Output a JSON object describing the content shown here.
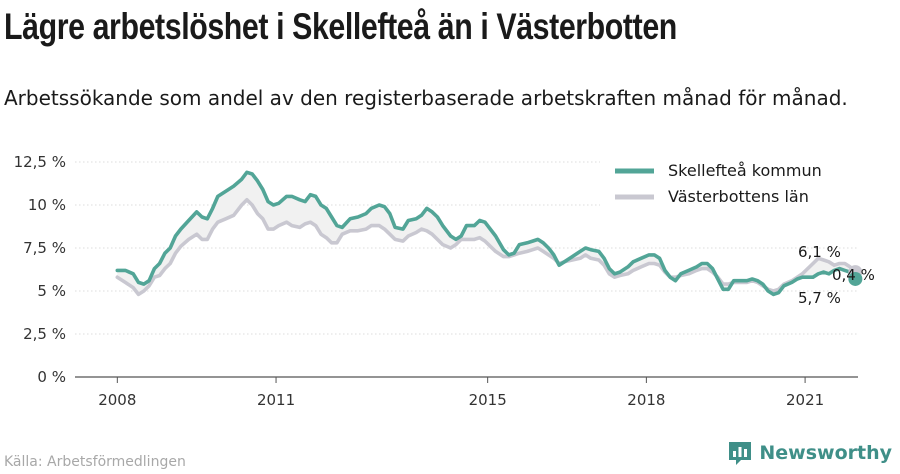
{
  "header": {
    "title": "Lägre arbetslöshet i Skellefteå än i Västerbotten",
    "subtitle": "Arbetssökande som andel av den registerbaserade arbetskraften månad för månad."
  },
  "footer": {
    "source": "Källa: Arbetsförmedlingen",
    "brand": "Newsworthy",
    "brand_icon": "bar-chart-logo-icon"
  },
  "colors": {
    "skelleftea": "#52a597",
    "vasterbotten": "#c9c8d1",
    "gap_fill": "#f1f1f1",
    "grid": "#dcdcdc"
  },
  "chart_data": {
    "type": "line",
    "title": "Lägre arbetslöshet i Skellefteå än i Västerbotten",
    "subtitle": "Arbetssökande som andel av den registerbaserade arbetskraften månad för månad.",
    "xlabel": "",
    "ylabel": "",
    "x_ticks": [
      {
        "label": "2008",
        "x": 2008.0
      },
      {
        "label": "2011",
        "x": 2011.0
      },
      {
        "label": "2015",
        "x": 2015.0
      },
      {
        "label": "2018",
        "x": 2018.0
      },
      {
        "label": "2021",
        "x": 2021.0
      }
    ],
    "y_ticks": [
      {
        "label": "0 %",
        "y": 0
      },
      {
        "label": "2,5 %",
        "y": 2.5
      },
      {
        "label": "5 %",
        "y": 5
      },
      {
        "label": "7,5 %",
        "y": 7.5
      },
      {
        "label": "10 %",
        "y": 10
      },
      {
        "label": "12,5 %",
        "y": 12.5
      }
    ],
    "xlim": [
      2007.2,
      2022.0
    ],
    "ylim": [
      0,
      12.5
    ],
    "grid": true,
    "legend": "top-right",
    "series": [
      {
        "name": "Skellefteå kommun",
        "color": "#52a597",
        "points": [
          [
            2008.0,
            6.2
          ],
          [
            2008.15,
            6.2
          ],
          [
            2008.3,
            6.0
          ],
          [
            2008.4,
            5.5
          ],
          [
            2008.5,
            5.4
          ],
          [
            2008.6,
            5.6
          ],
          [
            2008.7,
            6.3
          ],
          [
            2008.8,
            6.6
          ],
          [
            2008.9,
            7.2
          ],
          [
            2009.0,
            7.5
          ],
          [
            2009.1,
            8.2
          ],
          [
            2009.2,
            8.6
          ],
          [
            2009.35,
            9.1
          ],
          [
            2009.5,
            9.6
          ],
          [
            2009.6,
            9.3
          ],
          [
            2009.7,
            9.2
          ],
          [
            2009.8,
            9.8
          ],
          [
            2009.9,
            10.5
          ],
          [
            2010.05,
            10.8
          ],
          [
            2010.2,
            11.1
          ],
          [
            2010.35,
            11.5
          ],
          [
            2010.45,
            11.9
          ],
          [
            2010.55,
            11.8
          ],
          [
            2010.65,
            11.4
          ],
          [
            2010.75,
            10.9
          ],
          [
            2010.85,
            10.2
          ],
          [
            2010.95,
            10.0
          ],
          [
            2011.05,
            10.1
          ],
          [
            2011.2,
            10.5
          ],
          [
            2011.3,
            10.5
          ],
          [
            2011.45,
            10.3
          ],
          [
            2011.55,
            10.2
          ],
          [
            2011.65,
            10.6
          ],
          [
            2011.75,
            10.5
          ],
          [
            2011.85,
            10.0
          ],
          [
            2011.95,
            9.8
          ],
          [
            2012.05,
            9.3
          ],
          [
            2012.15,
            8.8
          ],
          [
            2012.25,
            8.7
          ],
          [
            2012.4,
            9.2
          ],
          [
            2012.55,
            9.3
          ],
          [
            2012.7,
            9.5
          ],
          [
            2012.8,
            9.8
          ],
          [
            2012.95,
            10.0
          ],
          [
            2013.05,
            9.9
          ],
          [
            2013.15,
            9.5
          ],
          [
            2013.25,
            8.7
          ],
          [
            2013.4,
            8.6
          ],
          [
            2013.5,
            9.1
          ],
          [
            2013.65,
            9.2
          ],
          [
            2013.75,
            9.4
          ],
          [
            2013.85,
            9.8
          ],
          [
            2013.95,
            9.6
          ],
          [
            2014.05,
            9.3
          ],
          [
            2014.15,
            8.8
          ],
          [
            2014.3,
            8.2
          ],
          [
            2014.4,
            8.0
          ],
          [
            2014.5,
            8.2
          ],
          [
            2014.6,
            8.8
          ],
          [
            2014.75,
            8.8
          ],
          [
            2014.85,
            9.1
          ],
          [
            2014.95,
            9.0
          ],
          [
            2015.05,
            8.6
          ],
          [
            2015.15,
            8.2
          ],
          [
            2015.3,
            7.4
          ],
          [
            2015.4,
            7.1
          ],
          [
            2015.5,
            7.2
          ],
          [
            2015.6,
            7.7
          ],
          [
            2015.75,
            7.8
          ],
          [
            2015.85,
            7.9
          ],
          [
            2015.95,
            8.0
          ],
          [
            2016.05,
            7.8
          ],
          [
            2016.15,
            7.5
          ],
          [
            2016.25,
            7.1
          ],
          [
            2016.35,
            6.5
          ],
          [
            2016.45,
            6.7
          ],
          [
            2016.6,
            7.0
          ],
          [
            2016.75,
            7.3
          ],
          [
            2016.85,
            7.5
          ],
          [
            2016.95,
            7.4
          ],
          [
            2017.1,
            7.3
          ],
          [
            2017.2,
            6.9
          ],
          [
            2017.3,
            6.3
          ],
          [
            2017.4,
            6.0
          ],
          [
            2017.5,
            6.1
          ],
          [
            2017.65,
            6.4
          ],
          [
            2017.75,
            6.7
          ],
          [
            2017.9,
            6.9
          ],
          [
            2018.05,
            7.1
          ],
          [
            2018.15,
            7.1
          ],
          [
            2018.25,
            6.9
          ],
          [
            2018.35,
            6.2
          ],
          [
            2018.45,
            5.8
          ],
          [
            2018.55,
            5.6
          ],
          [
            2018.65,
            6.0
          ],
          [
            2018.8,
            6.2
          ],
          [
            2018.95,
            6.4
          ],
          [
            2019.05,
            6.6
          ],
          [
            2019.15,
            6.6
          ],
          [
            2019.25,
            6.3
          ],
          [
            2019.35,
            5.7
          ],
          [
            2019.45,
            5.1
          ],
          [
            2019.55,
            5.1
          ],
          [
            2019.65,
            5.6
          ],
          [
            2019.75,
            5.6
          ],
          [
            2019.9,
            5.6
          ],
          [
            2020.0,
            5.7
          ],
          [
            2020.1,
            5.6
          ],
          [
            2020.2,
            5.4
          ],
          [
            2020.3,
            5.0
          ],
          [
            2020.4,
            4.8
          ],
          [
            2020.5,
            4.9
          ],
          [
            2020.6,
            5.3
          ],
          [
            2020.75,
            5.5
          ],
          [
            2020.85,
            5.7
          ],
          [
            2020.95,
            5.8
          ],
          [
            2021.05,
            5.8
          ],
          [
            2021.15,
            5.8
          ],
          [
            2021.25,
            6.0
          ],
          [
            2021.35,
            6.1
          ],
          [
            2021.45,
            6.0
          ],
          [
            2021.55,
            6.2
          ],
          [
            2021.65,
            6.3
          ],
          [
            2021.75,
            6.2
          ],
          [
            2021.85,
            6.1
          ],
          [
            2021.95,
            5.7
          ]
        ]
      },
      {
        "name": "Västerbottens län",
        "color": "#c9c8d1",
        "points": [
          [
            2008.0,
            5.8
          ],
          [
            2008.15,
            5.5
          ],
          [
            2008.3,
            5.2
          ],
          [
            2008.4,
            4.8
          ],
          [
            2008.5,
            5.0
          ],
          [
            2008.6,
            5.3
          ],
          [
            2008.7,
            5.8
          ],
          [
            2008.8,
            5.9
          ],
          [
            2008.9,
            6.3
          ],
          [
            2009.0,
            6.6
          ],
          [
            2009.1,
            7.2
          ],
          [
            2009.2,
            7.6
          ],
          [
            2009.35,
            8.0
          ],
          [
            2009.5,
            8.3
          ],
          [
            2009.6,
            8.0
          ],
          [
            2009.7,
            8.0
          ],
          [
            2009.8,
            8.6
          ],
          [
            2009.9,
            9.0
          ],
          [
            2010.05,
            9.2
          ],
          [
            2010.2,
            9.4
          ],
          [
            2010.35,
            10.0
          ],
          [
            2010.45,
            10.3
          ],
          [
            2010.55,
            10.0
          ],
          [
            2010.65,
            9.5
          ],
          [
            2010.75,
            9.2
          ],
          [
            2010.85,
            8.6
          ],
          [
            2010.95,
            8.6
          ],
          [
            2011.05,
            8.8
          ],
          [
            2011.2,
            9.0
          ],
          [
            2011.3,
            8.8
          ],
          [
            2011.45,
            8.7
          ],
          [
            2011.55,
            8.9
          ],
          [
            2011.65,
            9.0
          ],
          [
            2011.75,
            8.8
          ],
          [
            2011.85,
            8.3
          ],
          [
            2011.95,
            8.1
          ],
          [
            2012.05,
            7.8
          ],
          [
            2012.15,
            7.8
          ],
          [
            2012.25,
            8.3
          ],
          [
            2012.4,
            8.5
          ],
          [
            2012.55,
            8.5
          ],
          [
            2012.7,
            8.6
          ],
          [
            2012.8,
            8.8
          ],
          [
            2012.95,
            8.8
          ],
          [
            2013.05,
            8.6
          ],
          [
            2013.15,
            8.3
          ],
          [
            2013.25,
            8.0
          ],
          [
            2013.4,
            7.9
          ],
          [
            2013.5,
            8.2
          ],
          [
            2013.65,
            8.4
          ],
          [
            2013.75,
            8.6
          ],
          [
            2013.85,
            8.5
          ],
          [
            2013.95,
            8.3
          ],
          [
            2014.05,
            8.0
          ],
          [
            2014.15,
            7.7
          ],
          [
            2014.3,
            7.5
          ],
          [
            2014.4,
            7.7
          ],
          [
            2014.5,
            8.0
          ],
          [
            2014.6,
            8.0
          ],
          [
            2014.75,
            8.0
          ],
          [
            2014.85,
            8.1
          ],
          [
            2014.95,
            7.9
          ],
          [
            2015.05,
            7.6
          ],
          [
            2015.15,
            7.3
          ],
          [
            2015.3,
            7.0
          ],
          [
            2015.4,
            7.0
          ],
          [
            2015.5,
            7.1
          ],
          [
            2015.6,
            7.2
          ],
          [
            2015.75,
            7.3
          ],
          [
            2015.85,
            7.4
          ],
          [
            2015.95,
            7.5
          ],
          [
            2016.05,
            7.3
          ],
          [
            2016.15,
            7.1
          ],
          [
            2016.25,
            6.9
          ],
          [
            2016.35,
            6.6
          ],
          [
            2016.45,
            6.7
          ],
          [
            2016.6,
            6.8
          ],
          [
            2016.75,
            6.9
          ],
          [
            2016.85,
            7.1
          ],
          [
            2016.95,
            6.9
          ],
          [
            2017.1,
            6.8
          ],
          [
            2017.2,
            6.5
          ],
          [
            2017.3,
            6.0
          ],
          [
            2017.4,
            5.8
          ],
          [
            2017.5,
            5.9
          ],
          [
            2017.65,
            6.0
          ],
          [
            2017.75,
            6.2
          ],
          [
            2017.9,
            6.4
          ],
          [
            2018.05,
            6.6
          ],
          [
            2018.15,
            6.6
          ],
          [
            2018.25,
            6.5
          ],
          [
            2018.35,
            6.1
          ],
          [
            2018.45,
            5.8
          ],
          [
            2018.55,
            5.8
          ],
          [
            2018.65,
            5.9
          ],
          [
            2018.8,
            6.0
          ],
          [
            2018.95,
            6.2
          ],
          [
            2019.05,
            6.3
          ],
          [
            2019.15,
            6.3
          ],
          [
            2019.25,
            6.1
          ],
          [
            2019.35,
            5.8
          ],
          [
            2019.45,
            5.4
          ],
          [
            2019.55,
            5.4
          ],
          [
            2019.65,
            5.5
          ],
          [
            2019.75,
            5.5
          ],
          [
            2019.9,
            5.5
          ],
          [
            2020.0,
            5.6
          ],
          [
            2020.1,
            5.5
          ],
          [
            2020.2,
            5.3
          ],
          [
            2020.3,
            5.1
          ],
          [
            2020.4,
            5.0
          ],
          [
            2020.5,
            5.1
          ],
          [
            2020.6,
            5.4
          ],
          [
            2020.75,
            5.6
          ],
          [
            2020.85,
            5.8
          ],
          [
            2020.95,
            6.0
          ],
          [
            2021.05,
            6.3
          ],
          [
            2021.15,
            6.6
          ],
          [
            2021.25,
            6.9
          ],
          [
            2021.35,
            6.8
          ],
          [
            2021.45,
            6.7
          ],
          [
            2021.55,
            6.5
          ],
          [
            2021.65,
            6.6
          ],
          [
            2021.75,
            6.6
          ],
          [
            2021.85,
            6.4
          ],
          [
            2021.95,
            6.1
          ]
        ]
      }
    ],
    "annotations": [
      {
        "text": "6,1 %",
        "series": "Västerbottens län",
        "x": 2021.95,
        "y": 6.1
      },
      {
        "text": "0,4 %",
        "role": "difference"
      },
      {
        "text": "5,7 %",
        "series": "Skellefteå kommun",
        "x": 2021.95,
        "y": 5.7
      }
    ]
  }
}
